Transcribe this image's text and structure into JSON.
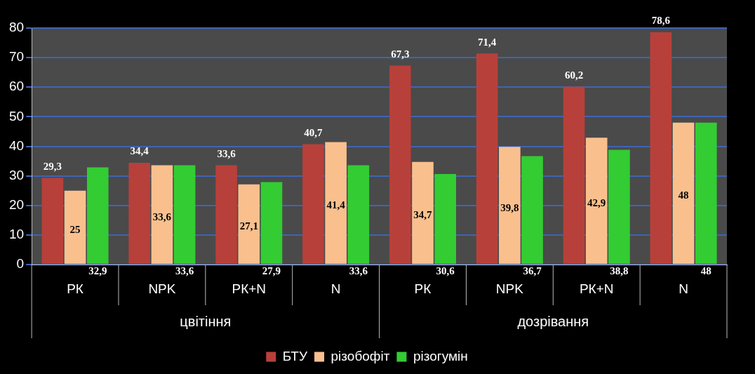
{
  "chart_data": {
    "type": "bar",
    "categories": [
      "РК",
      "NPK",
      "РК+N",
      "N",
      "РК",
      "NPK",
      "РК+N",
      "N"
    ],
    "series": [
      {
        "name": "БТУ",
        "color": "#b8403a",
        "values": [
          29.3,
          34.4,
          33.6,
          40.7,
          67.3,
          71.4,
          60.2,
          78.6
        ],
        "value_labels": [
          "29,3",
          "34,4",
          "33,6",
          "40,7",
          "67,3",
          "71,4",
          "60,2",
          "78,6"
        ]
      },
      {
        "name": "різобофіт",
        "color": "#f9c08e",
        "values": [
          25,
          33.6,
          27.1,
          41.4,
          34.7,
          39.8,
          42.9,
          48
        ],
        "value_labels": [
          "25",
          "33,6",
          "27,1",
          "41,4",
          "34,7",
          "39,8",
          "42,9",
          "48"
        ]
      },
      {
        "name": "різогумін",
        "color": "#33cc33",
        "values": [
          32.9,
          33.6,
          27.9,
          33.6,
          30.6,
          36.7,
          38.8,
          48
        ],
        "value_labels": [
          "32,9",
          "33,6",
          "27,9",
          "33,6",
          "30,6",
          "36,7",
          "38,8",
          "48"
        ]
      }
    ],
    "ylim": [
      0,
      80
    ],
    "yticks": [
      0,
      10,
      20,
      30,
      40,
      50,
      60,
      70,
      80
    ],
    "grid": "y",
    "legend": "bottom",
    "annotations": [
      "цвітіння",
      "дозрівання"
    ]
  }
}
